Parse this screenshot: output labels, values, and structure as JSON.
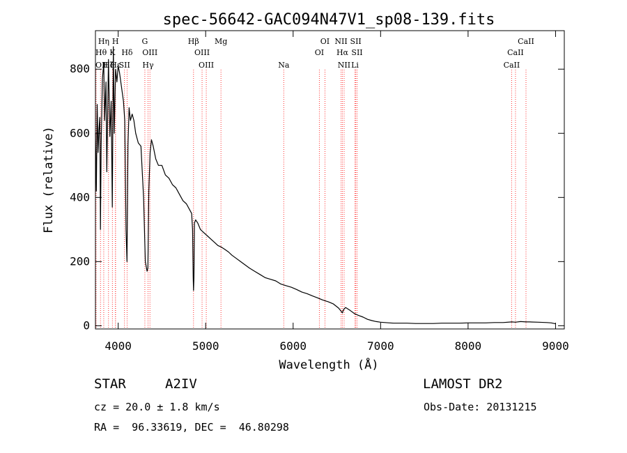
{
  "chart_data": {
    "type": "line",
    "title": "spec-56642-GAC094N47V1_sp08-139.fits",
    "xlabel": "Wavelength (Å)",
    "ylabel": "Flux (relative)",
    "xlim": [
      3740,
      9100
    ],
    "ylim": [
      -10,
      920
    ],
    "xticks": [
      4000,
      5000,
      6000,
      7000,
      8000,
      9000
    ],
    "yticks": [
      0,
      200,
      400,
      600,
      800
    ],
    "grid": false,
    "series": [
      {
        "x": [
          3740,
          3750,
          3760,
          3770,
          3780,
          3790,
          3797,
          3805,
          3820,
          3835,
          3845,
          3860,
          3870,
          3889,
          3905,
          3920,
          3933,
          3945,
          3955,
          3970,
          3985,
          4000,
          4015,
          4030,
          4045,
          4060,
          4075,
          4090,
          4101,
          4112,
          4125,
          4140,
          4160,
          4180,
          4200,
          4230,
          4260,
          4290,
          4310,
          4330,
          4340,
          4350,
          4365,
          4380,
          4400,
          4430,
          4460,
          4500,
          4540,
          4580,
          4620,
          4660,
          4700,
          4740,
          4780,
          4820,
          4840,
          4850,
          4857,
          4861,
          4866,
          4872,
          4885,
          4910,
          4940,
          4980,
          5020,
          5060,
          5100,
          5140,
          5180,
          5220,
          5260,
          5300,
          5350,
          5400,
          5450,
          5500,
          5560,
          5620,
          5680,
          5740,
          5800,
          5860,
          5920,
          5980,
          6040,
          6100,
          6160,
          6220,
          6280,
          6340,
          6400,
          6460,
          6520,
          6550,
          6563,
          6575,
          6600,
          6650,
          6700,
          6750,
          6800,
          6850,
          6900,
          6950,
          7000,
          7050,
          7100,
          7150,
          7200,
          7300,
          7400,
          7500,
          7600,
          7700,
          7800,
          7900,
          8000,
          8100,
          8200,
          8300,
          8400,
          8500,
          8542,
          8600,
          8662,
          8700,
          8800,
          8900,
          8950,
          9000
        ],
        "y": [
          600,
          420,
          690,
          540,
          610,
          650,
          300,
          560,
          770,
          820,
          640,
          760,
          480,
          830,
          590,
          700,
          370,
          870,
          600,
          800,
          760,
          810,
          790,
          760,
          730,
          700,
          640,
          300,
          200,
          560,
          680,
          640,
          660,
          640,
          600,
          570,
          560,
          400,
          200,
          170,
          180,
          420,
          540,
          580,
          560,
          520,
          500,
          500,
          470,
          460,
          440,
          430,
          410,
          390,
          380,
          360,
          350,
          300,
          150,
          110,
          150,
          320,
          330,
          320,
          300,
          290,
          280,
          270,
          260,
          250,
          245,
          238,
          230,
          220,
          210,
          200,
          190,
          180,
          170,
          160,
          150,
          145,
          140,
          130,
          125,
          120,
          113,
          105,
          100,
          93,
          87,
          80,
          75,
          68,
          55,
          45,
          40,
          50,
          57,
          48,
          38,
          32,
          27,
          20,
          16,
          13,
          11,
          10,
          9,
          8,
          8,
          8,
          7,
          7,
          7,
          8,
          8,
          8,
          9,
          9,
          9,
          10,
          10,
          12,
          11,
          13,
          12,
          12,
          11,
          10,
          9,
          6
        ]
      }
    ],
    "line_markers": [
      {
        "label": "OII",
        "x": 3727,
        "row": 3,
        "color": "#ff3030"
      },
      {
        "label": "Hθ",
        "x": 3798,
        "row": 2,
        "color": "#ff3030"
      },
      {
        "label": "Hη",
        "x": 3835,
        "row": 1,
        "color": "#ff3030"
      },
      {
        "label": "Hζ",
        "x": 3889,
        "row": 3,
        "color": "#ff3030"
      },
      {
        "label": "K",
        "x": 3934,
        "row": 2,
        "color": "#ff3030"
      },
      {
        "label": "H",
        "x": 3968,
        "row": 1,
        "color": "#ff3030"
      },
      {
        "label": "Hε",
        "x": 3970,
        "row": 3,
        "color": "#ff3030"
      },
      {
        "label": "Hδ",
        "x": 4102,
        "row": 2,
        "color": "#ff3030"
      },
      {
        "label": "SII",
        "x": 4072,
        "row": 3,
        "color": "#ff3030"
      },
      {
        "label": "G",
        "x": 4305,
        "row": 1,
        "color": "#ff3030"
      },
      {
        "label": "OIII",
        "x": 4363,
        "row": 2,
        "color": "#ff3030"
      },
      {
        "label": "Hγ",
        "x": 4341,
        "row": 3,
        "color": "#ff3030"
      },
      {
        "label": "Hβ",
        "x": 4861,
        "row": 1,
        "color": "#ff3030"
      },
      {
        "label": "OIII",
        "x": 4959,
        "row": 2,
        "color": "#ff3030"
      },
      {
        "label": "OIII",
        "x": 5007,
        "row": 3,
        "color": "#ff3030"
      },
      {
        "label": "Mg",
        "x": 5175,
        "row": 1,
        "color": "#ff3030"
      },
      {
        "label": "Na",
        "x": 5893,
        "row": 3,
        "color": "#ff3030"
      },
      {
        "label": "OI",
        "x": 6364,
        "row": 1,
        "color": "#ff3030"
      },
      {
        "label": "OI",
        "x": 6300,
        "row": 2,
        "color": "#ff3030"
      },
      {
        "label": "NII",
        "x": 6548,
        "row": 1,
        "color": "#ff3030"
      },
      {
        "label": "SII",
        "x": 6716,
        "row": 1,
        "color": "#ff3030"
      },
      {
        "label": "Hα",
        "x": 6563,
        "row": 2,
        "color": "#ff3030"
      },
      {
        "label": "SII",
        "x": 6731,
        "row": 2,
        "color": "#ff3030"
      },
      {
        "label": "NII",
        "x": 6583,
        "row": 3,
        "color": "#ff3030"
      },
      {
        "label": "Li",
        "x": 6707,
        "row": 3,
        "color": "#ff3030"
      },
      {
        "label": "CaII",
        "x": 8662,
        "row": 1,
        "color": "#ff3030"
      },
      {
        "label": "CaII",
        "x": 8542,
        "row": 2,
        "color": "#ff3030"
      },
      {
        "label": "CaII",
        "x": 8498,
        "row": 3,
        "color": "#ff3030"
      }
    ]
  },
  "info": {
    "class_label": "STAR",
    "subclass": "A2IV",
    "survey": "LAMOST DR2",
    "cz": "cz = 20.0 ± 1.8 km/s",
    "obs_date": "Obs-Date: 20131215",
    "coords": "RA =  96.33619, DEC =  46.80298"
  }
}
